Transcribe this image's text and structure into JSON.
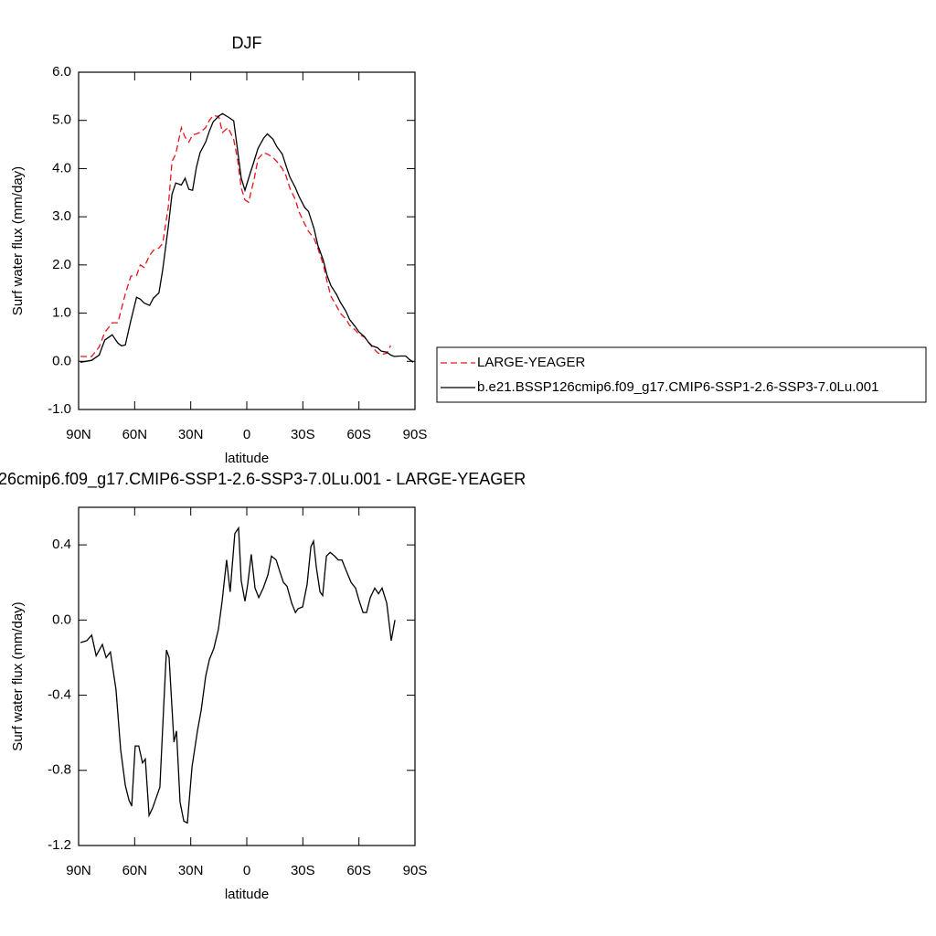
{
  "chart_data": [
    {
      "type": "line",
      "title": "DJF",
      "x_label": "latitude",
      "y_label": "Surf water flux (mm/day)",
      "xlim": [
        90,
        -90
      ],
      "xticks": [
        {
          "value": 90,
          "label": "90N"
        },
        {
          "value": 60,
          "label": "60N"
        },
        {
          "value": 30,
          "label": "30N"
        },
        0,
        {
          "value": -30,
          "label": "30S"
        },
        {
          "value": -60,
          "label": "60S"
        },
        {
          "value": -90,
          "label": "90S"
        }
      ],
      "ylim": [
        -1,
        6
      ],
      "yticks": [
        {
          "value": -1,
          "label": "-1.0"
        },
        {
          "value": 0,
          "label": "0.0"
        },
        {
          "value": 1,
          "label": "1.0"
        },
        {
          "value": 2,
          "label": "2.0"
        },
        {
          "value": 3,
          "label": "3.0"
        },
        {
          "value": 4,
          "label": "4.0"
        },
        {
          "value": 5,
          "label": "5.0"
        },
        {
          "value": 6,
          "label": "6.0"
        }
      ],
      "legend": "outside-right",
      "x": [
        89,
        83,
        79,
        76,
        72,
        69,
        67,
        65,
        62,
        59,
        57,
        55,
        52,
        50,
        47,
        45,
        42,
        40,
        38,
        35,
        33,
        31,
        29,
        27,
        25,
        22,
        20,
        18,
        15,
        13,
        10,
        7,
        5,
        3,
        1,
        -1,
        -4,
        -6,
        -9,
        -11,
        -14,
        -16,
        -19,
        -21,
        -23,
        -26,
        -28,
        -31,
        -33,
        -36,
        -38,
        -41,
        -43,
        -45,
        -48,
        -50,
        -53,
        -55,
        -58,
        -60,
        -63,
        -65,
        -67,
        -70,
        -72,
        -75,
        -77,
        -79,
        -82,
        -85,
        -87,
        -89
      ],
      "series": [
        {
          "name": "LARGE-YEAGER",
          "color": "#e8141b",
          "line_style": "dashed",
          "values": [
            0.1,
            0.1,
            0.3,
            0.6,
            0.8,
            0.8,
            1.1,
            1.4,
            1.77,
            1.78,
            2.0,
            1.95,
            2.2,
            2.3,
            2.35,
            2.45,
            3.2,
            4.15,
            4.3,
            4.85,
            4.65,
            4.55,
            4.7,
            4.72,
            4.75,
            4.85,
            5.0,
            5.1,
            5.08,
            4.75,
            4.85,
            4.6,
            4.2,
            3.6,
            3.35,
            3.3,
            3.8,
            4.2,
            4.33,
            4.3,
            4.23,
            4.15,
            4.0,
            3.85,
            3.6,
            3.35,
            3.1,
            2.85,
            2.7,
            2.55,
            2.35,
            2.0,
            1.65,
            1.35,
            1.15,
            1.0,
            0.88,
            0.75,
            0.65,
            0.56,
            0.5,
            0.4,
            0.3,
            0.18,
            0.14,
            0.17,
            0.33,
            null,
            null,
            null,
            null,
            null
          ]
        },
        {
          "name": "b.e21.BSSP126cmip6.f09_g17.CMIP6-SSP1-2.6-SSP3-7.0Lu.001",
          "color": "#000000",
          "line_style": "solid",
          "values": [
            -0.02,
            0.02,
            0.13,
            0.44,
            0.55,
            0.38,
            0.32,
            0.34,
            0.85,
            1.33,
            1.29,
            1.21,
            1.16,
            1.31,
            1.42,
            1.9,
            2.79,
            3.47,
            3.7,
            3.66,
            3.8,
            3.57,
            3.55,
            4.02,
            4.33,
            4.55,
            4.78,
            4.97,
            5.09,
            5.14,
            5.07,
            4.99,
            4.4,
            3.8,
            3.55,
            3.8,
            4.17,
            4.42,
            4.63,
            4.72,
            4.61,
            4.46,
            4.3,
            4.06,
            3.83,
            3.6,
            3.42,
            3.19,
            3.11,
            2.75,
            2.41,
            2.09,
            1.78,
            1.57,
            1.39,
            1.23,
            1.04,
            0.87,
            0.72,
            0.61,
            0.51,
            0.4,
            0.32,
            0.28,
            0.21,
            0.19,
            0.13,
            0.1,
            0.11,
            0.11,
            0.04,
            -0.02
          ]
        }
      ]
    },
    {
      "type": "line",
      "title": "26cmip6.f09_g17.CMIP6-SSP1-2.6-SSP3-7.0Lu.001 - LARGE-YEAGER",
      "x_label": "latitude",
      "y_label": "Surf water flux (mm/day)",
      "xlim": [
        90,
        -90
      ],
      "xticks": [
        {
          "value": 90,
          "label": "90N"
        },
        {
          "value": 60,
          "label": "60N"
        },
        {
          "value": 30,
          "label": "30N"
        },
        0,
        {
          "value": -30,
          "label": "30S"
        },
        {
          "value": -60,
          "label": "60S"
        },
        {
          "value": -90,
          "label": "90S"
        }
      ],
      "ylim": [
        -1.2,
        0.6
      ],
      "yticks": [
        -1.2,
        -0.8,
        -0.4,
        {
          "value": 0,
          "label": "0.0"
        },
        0.4
      ],
      "color": "#000000",
      "x": [
        89,
        85.6,
        83,
        80.6,
        77.3,
        75.3,
        73,
        70,
        67.5,
        65,
        63,
        61.6,
        59.7,
        57.8,
        55.8,
        54.3,
        52.3,
        50.4,
        46.5,
        44.5,
        43,
        41.6,
        39,
        37.6,
        35.7,
        33.7,
        31.8,
        29.3,
        26.4,
        24.4,
        22,
        20,
        17.6,
        15.2,
        13.2,
        10.8,
        8.9,
        6.4,
        4.4,
        3,
        1,
        -0.5,
        -2.4,
        -4.4,
        -6.4,
        -8.8,
        -11.3,
        -13.2,
        -15.7,
        -17.6,
        -19.6,
        -21.5,
        -24,
        -26,
        -27.4,
        -29.9,
        -32.3,
        -34.3,
        -35.7,
        -37.2,
        -39.2,
        -40.6,
        -42.6,
        -44.6,
        -47,
        -48.9,
        -50.9,
        -53.3,
        -55.8,
        -58.2,
        -60.2,
        -62.2,
        -64.1,
        -66.1,
        -68.5,
        -70.5,
        -72.4,
        -74.9,
        -77.3,
        -79.3
      ],
      "values": [
        -0.12,
        -0.11,
        -0.08,
        -0.19,
        -0.13,
        -0.2,
        -0.17,
        -0.37,
        -0.69,
        -0.88,
        -0.96,
        -0.99,
        -0.67,
        -0.67,
        -0.76,
        -0.74,
        -1.04,
        -1.0,
        -0.89,
        -0.47,
        -0.16,
        -0.2,
        -0.65,
        -0.59,
        -0.97,
        -1.07,
        -1.08,
        -0.78,
        -0.59,
        -0.48,
        -0.3,
        -0.21,
        -0.15,
        -0.05,
        0.1,
        0.32,
        0.15,
        0.46,
        0.49,
        0.21,
        0.1,
        0.19,
        0.35,
        0.17,
        0.12,
        0.17,
        0.24,
        0.34,
        0.32,
        0.26,
        0.2,
        0.18,
        0.09,
        0.04,
        0.06,
        0.07,
        0.19,
        0.39,
        0.42,
        0.28,
        0.15,
        0.13,
        0.34,
        0.36,
        0.34,
        0.32,
        0.32,
        0.26,
        0.2,
        0.17,
        0.1,
        0.04,
        0.04,
        0.12,
        0.17,
        0.14,
        0.17,
        0.09,
        -0.11,
        0.0
      ]
    }
  ]
}
